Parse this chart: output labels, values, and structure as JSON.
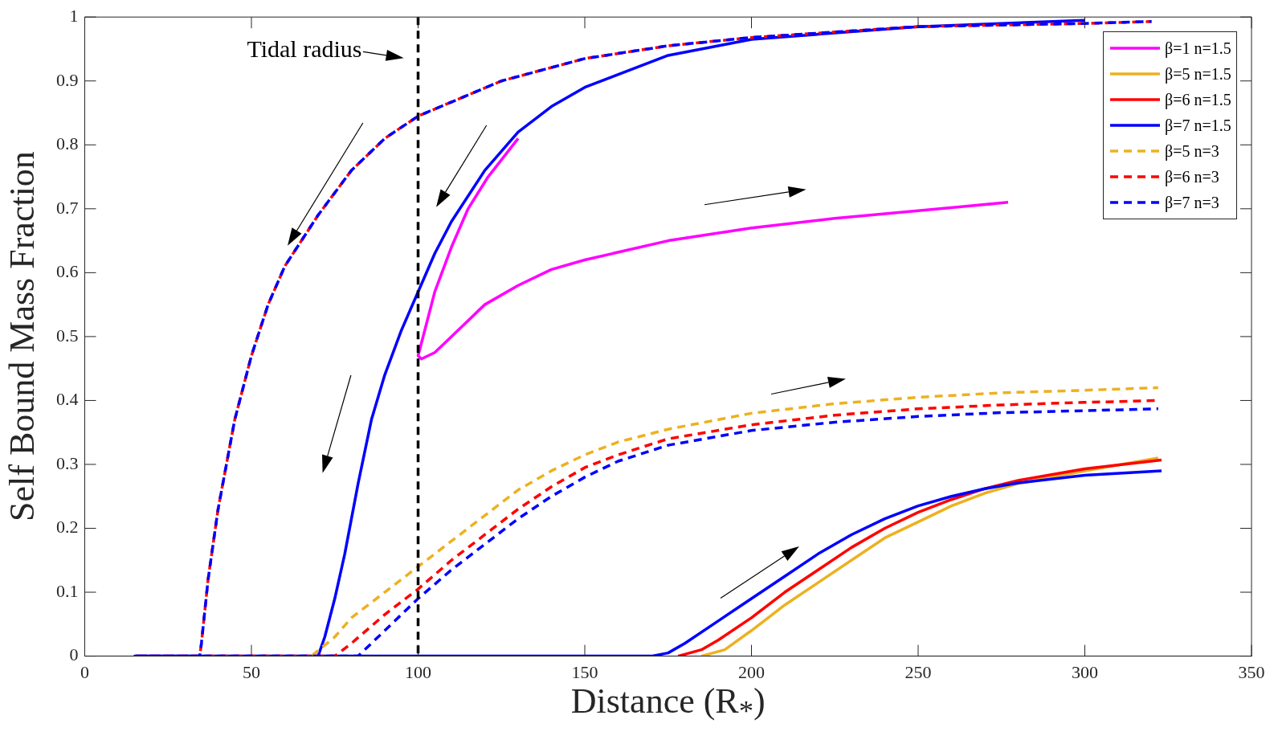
{
  "chart_data": {
    "type": "line",
    "xlabel": "Distance (R$_{*}$)",
    "ylabel": "Self Bound Mass Fraction",
    "xlim": [
      0,
      350
    ],
    "xticks": [
      0,
      50,
      100,
      150,
      200,
      250,
      300,
      350
    ],
    "ylim": [
      0,
      1
    ],
    "yticks": [
      0,
      0.1,
      0.2,
      0.3,
      0.4,
      0.5,
      0.6,
      0.7,
      0.8,
      0.9,
      1
    ],
    "legend": "top right",
    "marker": "none",
    "ref_lines": [
      {
        "axis": "x",
        "value": 100,
        "label": "Tidal radius",
        "color": "#000000",
        "line_style": "dashed"
      }
    ],
    "series": [
      {
        "name": "β=1 n=1.5",
        "color": "#ff00ff",
        "line_style": "solid",
        "x": [
          130,
          121,
          115,
          110,
          105,
          102,
          100,
          101,
          105,
          110,
          120,
          130,
          140,
          150,
          175,
          200,
          225,
          250,
          277
        ],
        "values": [
          0.81,
          0.75,
          0.7,
          0.64,
          0.57,
          0.51,
          0.47,
          0.465,
          0.475,
          0.5,
          0.55,
          0.58,
          0.605,
          0.62,
          0.65,
          0.67,
          0.685,
          0.697,
          0.71
        ]
      },
      {
        "name": "β=5 n=1.5",
        "color": "#edb120",
        "line_style": "solid",
        "x": [
          185,
          192,
          200,
          210,
          220,
          230,
          240,
          250,
          260,
          270,
          280,
          300,
          322
        ],
        "values": [
          0,
          0.01,
          0.04,
          0.08,
          0.115,
          0.15,
          0.185,
          0.21,
          0.235,
          0.255,
          0.27,
          0.29,
          0.31
        ]
      },
      {
        "name": "β=6 n=1.5",
        "color": "#ff0000",
        "line_style": "solid",
        "x": [
          178,
          185,
          190,
          200,
          210,
          220,
          230,
          240,
          250,
          260,
          270,
          280,
          300,
          323
        ],
        "values": [
          0,
          0.01,
          0.025,
          0.06,
          0.1,
          0.135,
          0.17,
          0.2,
          0.225,
          0.245,
          0.262,
          0.275,
          0.293,
          0.307
        ]
      },
      {
        "name": "β=7 n=1.5",
        "color": "#0000ff",
        "line_style": "solid",
        "x": [
          300,
          250,
          200,
          175,
          150,
          140,
          130,
          120,
          110,
          105,
          100,
          95,
          90,
          86,
          82,
          78,
          75,
          72,
          70,
          15,
          170,
          175,
          180,
          190,
          200,
          210,
          220,
          230,
          240,
          250,
          260,
          270,
          280,
          300,
          323
        ],
        "values": [
          0.995,
          0.985,
          0.965,
          0.94,
          0.89,
          0.86,
          0.82,
          0.76,
          0.68,
          0.63,
          0.57,
          0.51,
          0.44,
          0.37,
          0.27,
          0.16,
          0.09,
          0.03,
          0,
          0,
          0,
          0.005,
          0.02,
          0.055,
          0.09,
          0.125,
          0.16,
          0.19,
          0.215,
          0.235,
          0.25,
          0.262,
          0.271,
          0.283,
          0.29
        ]
      },
      {
        "name": "β=5 n=3",
        "color": "#edb120",
        "line_style": "dashed",
        "x": [
          68,
          75,
          80,
          90,
          100,
          110,
          120,
          130,
          140,
          150,
          160,
          175,
          200,
          225,
          250,
          275,
          300,
          322
        ],
        "values": [
          0,
          0.03,
          0.06,
          0.1,
          0.14,
          0.18,
          0.22,
          0.26,
          0.29,
          0.315,
          0.335,
          0.355,
          0.38,
          0.395,
          0.405,
          0.412,
          0.416,
          0.42
        ]
      },
      {
        "name": "β=6 n=3",
        "color": "#ff0000",
        "line_style": "dashed",
        "x": [
          320,
          300,
          250,
          200,
          175,
          150,
          125,
          100,
          90,
          80,
          70,
          60,
          55,
          50,
          45,
          40,
          37,
          35,
          34.5,
          15,
          75,
          80,
          90,
          100,
          110,
          120,
          130,
          140,
          150,
          160,
          175,
          200,
          225,
          250,
          275,
          300,
          322
        ],
        "values": [
          0.993,
          0.99,
          0.985,
          0.968,
          0.955,
          0.935,
          0.9,
          0.845,
          0.81,
          0.76,
          0.69,
          0.61,
          0.55,
          0.47,
          0.37,
          0.23,
          0.12,
          0.02,
          0,
          0,
          0,
          0.02,
          0.065,
          0.105,
          0.15,
          0.19,
          0.23,
          0.265,
          0.295,
          0.315,
          0.34,
          0.362,
          0.377,
          0.387,
          0.393,
          0.397,
          0.4
        ]
      },
      {
        "name": "β=7 n=3",
        "color": "#0000ff",
        "line_style": "dashed",
        "x": [
          320,
          300,
          250,
          200,
          175,
          150,
          125,
          100,
          90,
          80,
          70,
          60,
          55,
          50,
          45,
          40,
          37,
          35,
          34.5,
          15,
          82,
          90,
          100,
          110,
          120,
          130,
          140,
          150,
          160,
          175,
          200,
          225,
          250,
          275,
          300,
          322
        ],
        "values": [
          0.993,
          0.99,
          0.985,
          0.968,
          0.955,
          0.935,
          0.9,
          0.845,
          0.81,
          0.76,
          0.69,
          0.61,
          0.55,
          0.47,
          0.37,
          0.23,
          0.12,
          0.02,
          0,
          0,
          0,
          0.04,
          0.09,
          0.135,
          0.175,
          0.215,
          0.25,
          0.28,
          0.305,
          0.33,
          0.353,
          0.366,
          0.375,
          0.381,
          0.384,
          0.387
        ]
      }
    ]
  }
}
